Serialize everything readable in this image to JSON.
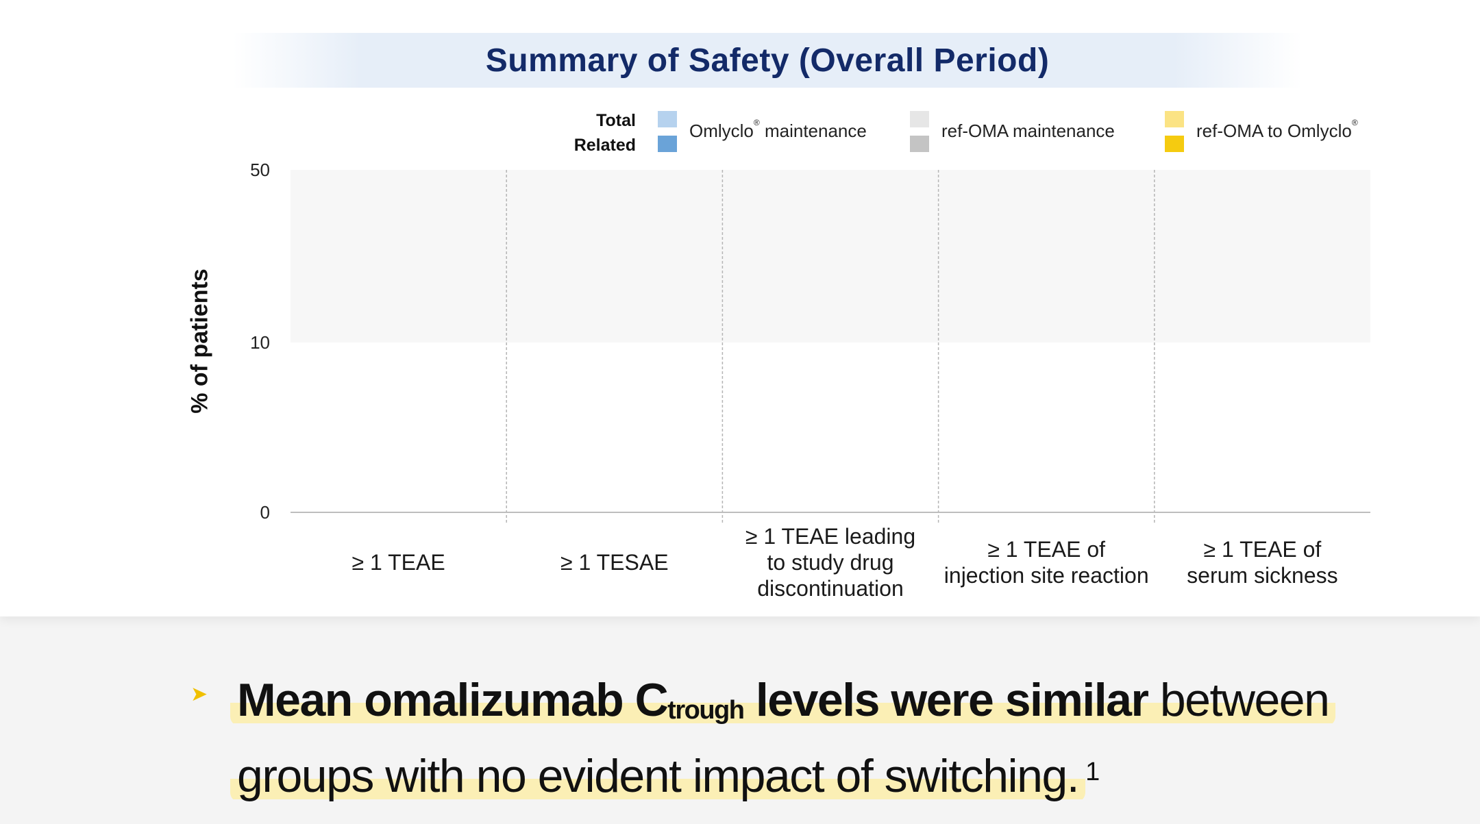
{
  "title": "Summary of Safety (Overall Period)",
  "legend": {
    "row_labels": [
      "Total",
      "Related"
    ],
    "groups": [
      {
        "name": "Omlyclo",
        "mark": "®",
        "suffix": " maintenance",
        "total_color": "#b6d2ee",
        "related_color": "#6aa3d8"
      },
      {
        "name": "ref-OMA  maintenance",
        "mark": "",
        "suffix": "",
        "total_color": "#e6e6e6",
        "related_color": "#c4c4c4"
      },
      {
        "name": "ref-OMA to Omlyclo",
        "mark": "®",
        "suffix": "",
        "total_color": "#fbe384",
        "related_color": "#f5cb10"
      }
    ]
  },
  "chart_data": {
    "type": "bar",
    "title": "Summary of Safety (Overall Period)",
    "ylabel": "% of patients",
    "y_ticks": [
      0,
      10,
      50
    ],
    "y_scale": "broken",
    "categories": [
      "≥ 1 TEAE",
      "≥ 1 TESAE",
      "≥ 1 TEAE leading\nto study drug\ndiscontinuation",
      "≥ 1 TEAE of\ninjection site reaction",
      "≥ 1 TEAE of\nserum sickness"
    ],
    "series": [],
    "grid": false,
    "legend_position": "top-right"
  },
  "bullet": {
    "p1": "Mean omalizumab C",
    "sub": "trough",
    "p2": " levels were similar",
    "p3": " between groups with no evident impact of switching.",
    "ref": "1"
  }
}
